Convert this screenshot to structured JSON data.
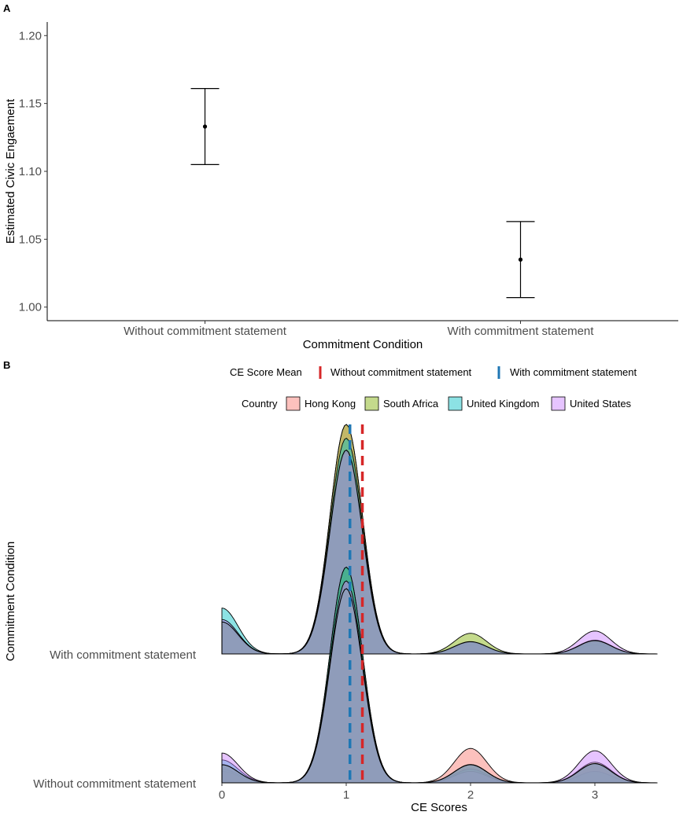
{
  "figure": {
    "panel_a_label": "A",
    "panel_b_label": "B"
  },
  "chart_data": [
    {
      "type": "scatter",
      "subtype": "point-with-error-bars",
      "title": "",
      "xlabel": "Commitment Condition",
      "ylabel": "Estimated Civic Engaement",
      "categories": [
        "Without commitment statement",
        "With commitment statement"
      ],
      "estimates": [
        1.133,
        1.035
      ],
      "lower": [
        1.105,
        1.007
      ],
      "upper": [
        1.161,
        1.063
      ],
      "ylim": [
        0.99,
        1.21
      ],
      "yticks": [
        1.0,
        1.05,
        1.1,
        1.15,
        1.2
      ],
      "yticklabels": [
        "1.00",
        "1.05",
        "1.10",
        "1.15",
        "1.20"
      ],
      "grid": false
    },
    {
      "type": "area",
      "subtype": "ridgeline-density",
      "xlabel": "CE Scores",
      "ylabel": "Commitment Condition",
      "x_range": [
        0,
        3.5
      ],
      "xticks": [
        0,
        1,
        2,
        3
      ],
      "xticklabels": [
        "0",
        "1",
        "2",
        "3"
      ],
      "rows": [
        "Without commitment statement",
        "With commitment statement"
      ],
      "mean_legend": {
        "title": "CE Score Mean",
        "items": [
          {
            "label": "Without commitment statement",
            "color": "#d62728",
            "value": 1.13
          },
          {
            "label": "With commitment statement",
            "color": "#1f77b4",
            "value": 1.03
          }
        ]
      },
      "country_legend": {
        "title": "Country",
        "items": [
          {
            "label": "Hong Kong",
            "color": "#f8766d"
          },
          {
            "label": "South Africa",
            "color": "#7cae00"
          },
          {
            "label": "United Kingdom",
            "color": "#00bfc4"
          },
          {
            "label": "United States",
            "color": "#c77cff"
          }
        ]
      },
      "overall_fill": "#8e9cba",
      "series": [
        {
          "row": "With commitment statement",
          "country": "Hong Kong",
          "peaks": [
            {
              "x": 0,
              "h": 0.13
            },
            {
              "x": 1,
              "h": 1.0
            },
            {
              "x": 2,
              "h": 0.04
            },
            {
              "x": 3,
              "h": 0.04
            }
          ]
        },
        {
          "row": "With commitment statement",
          "country": "South Africa",
          "peaks": [
            {
              "x": 0,
              "h": 0.12
            },
            {
              "x": 1,
              "h": 1.0
            },
            {
              "x": 2,
              "h": 0.09
            },
            {
              "x": 3,
              "h": 0.06
            }
          ]
        },
        {
          "row": "With commitment statement",
          "country": "United Kingdom",
          "peaks": [
            {
              "x": 0,
              "h": 0.2
            },
            {
              "x": 1,
              "h": 0.94
            },
            {
              "x": 2,
              "h": 0.05
            },
            {
              "x": 3,
              "h": 0.05
            }
          ]
        },
        {
          "row": "With commitment statement",
          "country": "United States",
          "peaks": [
            {
              "x": 0,
              "h": 0.15
            },
            {
              "x": 1,
              "h": 0.88
            },
            {
              "x": 2,
              "h": 0.05
            },
            {
              "x": 3,
              "h": 0.1
            }
          ]
        },
        {
          "row": "Without commitment statement",
          "country": "Hong Kong",
          "peaks": [
            {
              "x": 0,
              "h": 0.05
            },
            {
              "x": 1,
              "h": 0.88
            },
            {
              "x": 2,
              "h": 0.15
            },
            {
              "x": 3,
              "h": 0.08
            }
          ]
        },
        {
          "row": "Without commitment statement",
          "country": "South Africa",
          "peaks": [
            {
              "x": 0,
              "h": 0.06
            },
            {
              "x": 1,
              "h": 0.94
            },
            {
              "x": 2,
              "h": 0.08
            },
            {
              "x": 3,
              "h": 0.09
            }
          ]
        },
        {
          "row": "Without commitment statement",
          "country": "United Kingdom",
          "peaks": [
            {
              "x": 0,
              "h": 0.1
            },
            {
              "x": 1,
              "h": 0.94
            },
            {
              "x": 2,
              "h": 0.06
            },
            {
              "x": 3,
              "h": 0.05
            }
          ]
        },
        {
          "row": "Without commitment statement",
          "country": "United States",
          "peaks": [
            {
              "x": 0,
              "h": 0.13
            },
            {
              "x": 1,
              "h": 0.88
            },
            {
              "x": 2,
              "h": 0.05
            },
            {
              "x": 3,
              "h": 0.14
            }
          ]
        }
      ]
    }
  ]
}
